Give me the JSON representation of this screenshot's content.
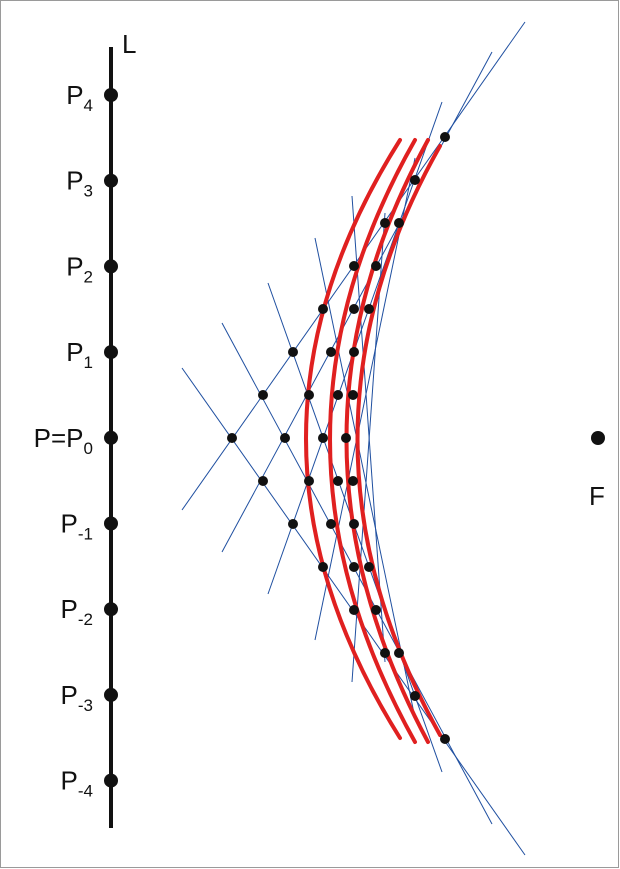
{
  "diagram": {
    "line_label": "L",
    "focus_label": "F",
    "points": [
      {
        "base": "P",
        "sub": "4"
      },
      {
        "base": "P",
        "sub": "3"
      },
      {
        "base": "P",
        "sub": "2"
      },
      {
        "base": "P",
        "sub": "1"
      },
      {
        "base": "P=P",
        "sub": "0"
      },
      {
        "base": "P",
        "sub": "-1"
      },
      {
        "base": "P",
        "sub": "-2"
      },
      {
        "base": "P",
        "sub": "-3"
      },
      {
        "base": "P",
        "sub": "-4"
      }
    ],
    "colors": {
      "frame": "#9a9a9a",
      "directrix": "#111111",
      "dots": "#111111",
      "construction_lines": "#1f4fa0",
      "curves": "#e02020"
    }
  }
}
